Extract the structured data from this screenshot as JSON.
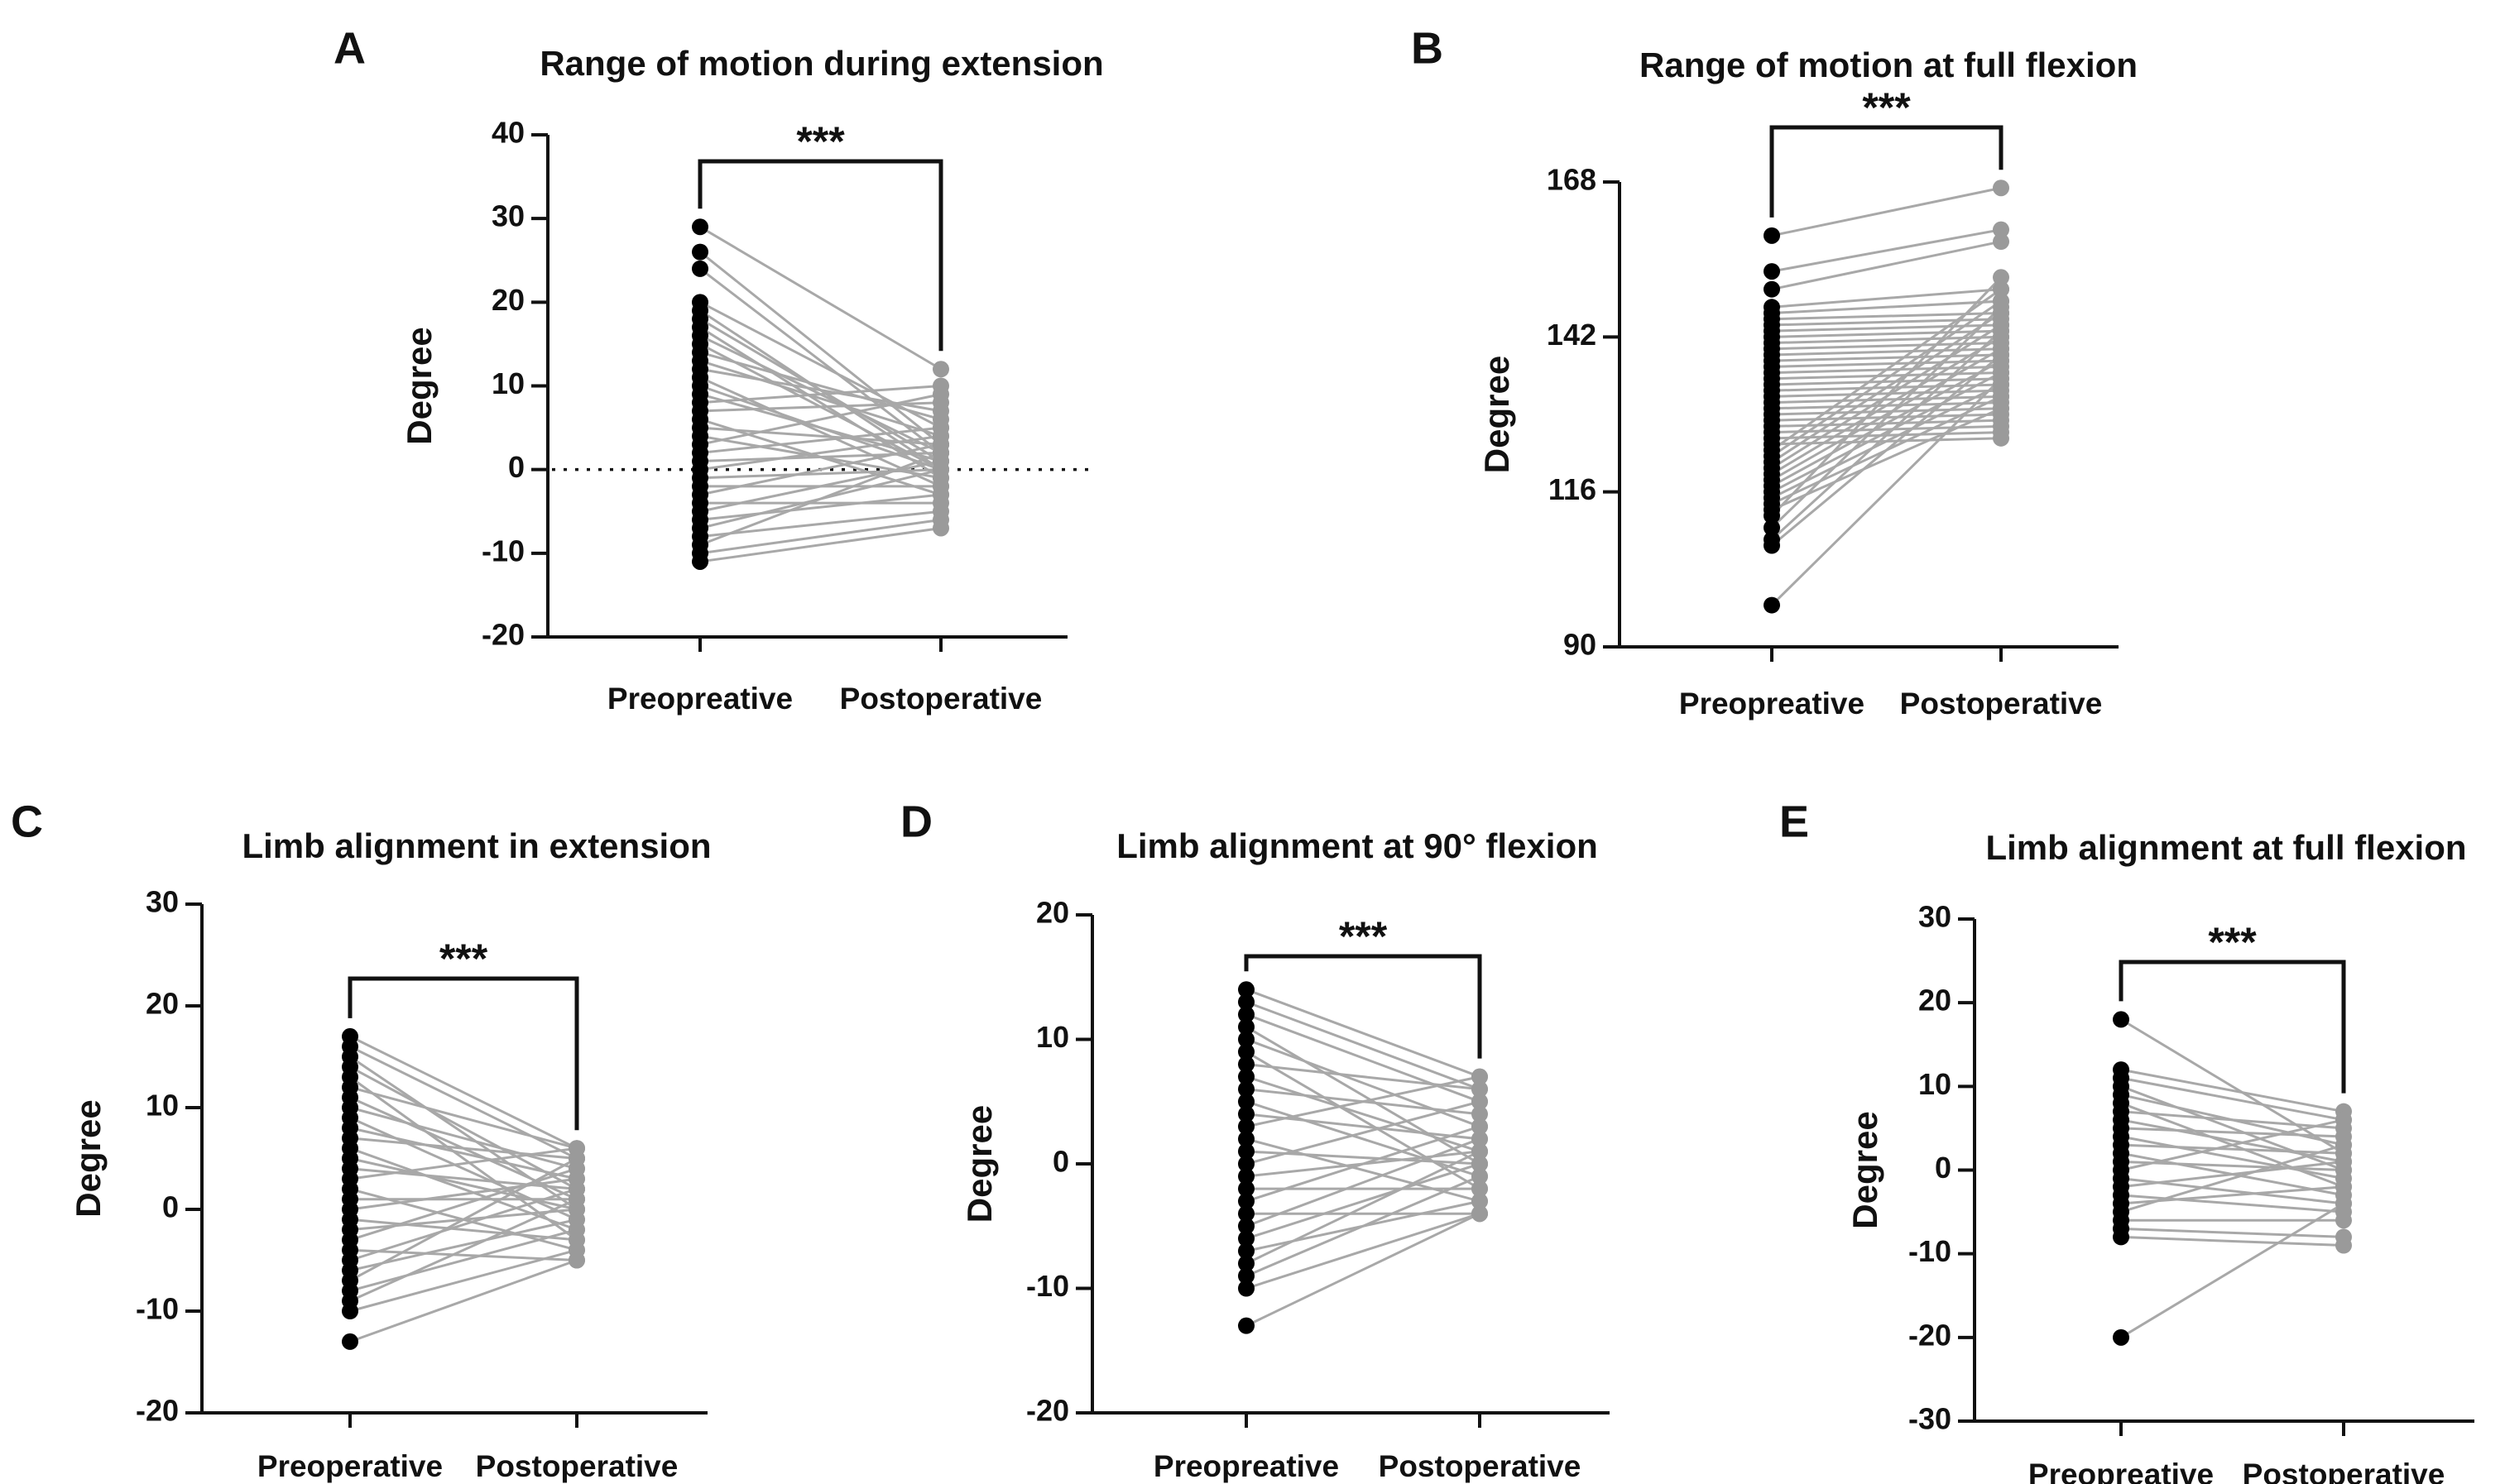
{
  "colors": {
    "pre_marker": "#000000",
    "post_marker": "#9a9a9a",
    "line": "#a8a8a8",
    "axis": "#111111"
  },
  "chart_data": [
    {
      "id": "A",
      "panel_letter": "A",
      "type": "scatter",
      "title": "Range of motion during extension",
      "ylabel": "Degree",
      "xlabel": "",
      "categories": [
        "Preopreative",
        "Postoperative"
      ],
      "ylim": [
        -20,
        40
      ],
      "yticks": [
        -20,
        -10,
        0,
        10,
        20,
        30,
        40
      ],
      "reference_line": 0,
      "significance": "***",
      "series": [
        {
          "name": "Preopreative",
          "values": [
            29,
            26,
            24,
            20,
            19,
            18,
            17,
            16,
            15,
            14,
            13,
            12,
            11,
            10,
            9,
            8,
            7,
            6,
            5,
            4,
            3,
            2,
            1,
            0,
            -1,
            -2,
            -3,
            -4,
            -5,
            -6,
            -7,
            -8,
            -9,
            -10,
            -11
          ]
        },
        {
          "name": "Postoperative",
          "values": [
            12,
            3,
            2,
            5,
            0,
            1,
            -1,
            2,
            0,
            6,
            4,
            7,
            -2,
            0,
            1,
            10,
            8,
            -3,
            3,
            -1,
            9,
            5,
            2,
            4,
            0,
            -2,
            3,
            -4,
            1,
            -3,
            0,
            -5,
            2,
            -6,
            -7
          ]
        }
      ]
    },
    {
      "id": "B",
      "panel_letter": "B",
      "type": "scatter",
      "title": "Range of motion at full flexion",
      "ylabel": "Degree",
      "xlabel": "",
      "categories": [
        "Preopreative",
        "Postoperative"
      ],
      "ylim": [
        90,
        168
      ],
      "yticks": [
        90,
        116,
        142,
        168
      ],
      "significance": "***",
      "series": [
        {
          "name": "Preopreative",
          "values": [
            159,
            153,
            150,
            147,
            146,
            145,
            144,
            143,
            142,
            141,
            140,
            139,
            138,
            137,
            136,
            135,
            134,
            133,
            132,
            131,
            130,
            129,
            128,
            127,
            126,
            125,
            124,
            123,
            122,
            121,
            120,
            119,
            118,
            117,
            116,
            115,
            114,
            113,
            112,
            110,
            108,
            107,
            97
          ]
        },
        {
          "name": "Postoperative",
          "values": [
            167,
            160,
            158,
            150,
            148,
            146,
            145,
            144,
            143,
            142,
            141,
            140,
            139,
            138,
            137,
            136,
            135,
            134,
            133,
            132,
            131,
            130,
            129,
            128,
            127,
            126,
            125,
            150,
            148,
            146,
            144,
            142,
            140,
            138,
            136,
            134,
            132,
            130,
            152,
            147,
            143,
            139,
            135
          ]
        }
      ]
    },
    {
      "id": "C",
      "panel_letter": "C",
      "type": "scatter",
      "title": "Limb alignment in extension",
      "ylabel": "Degree",
      "xlabel": "",
      "categories": [
        "Preoperative",
        "Postoperative"
      ],
      "ylim": [
        -20,
        30
      ],
      "yticks": [
        -20,
        -10,
        0,
        10,
        20,
        30
      ],
      "significance": "***",
      "series": [
        {
          "name": "Preoperative",
          "values": [
            17,
            16,
            15,
            14,
            13,
            12,
            11,
            10,
            9,
            8,
            7,
            6,
            5,
            4,
            3,
            2,
            1,
            0,
            -1,
            -2,
            -3,
            -4,
            -5,
            -6,
            -7,
            -8,
            -9,
            -10,
            -13
          ]
        },
        {
          "name": "Postoperative",
          "values": [
            6,
            5,
            0,
            2,
            -3,
            6,
            1,
            4,
            -1,
            3,
            5,
            -2,
            0,
            2,
            6,
            -4,
            1,
            3,
            -3,
            0,
            4,
            -5,
            2,
            -1,
            5,
            -2,
            1,
            -4,
            -5
          ]
        }
      ]
    },
    {
      "id": "D",
      "panel_letter": "D",
      "type": "scatter",
      "title": "Limb alignment at 90° flexion",
      "ylabel": "Degree",
      "xlabel": "",
      "categories": [
        "Preopreative",
        "Postoperative"
      ],
      "ylim": [
        -20,
        20
      ],
      "yticks": [
        -20,
        -10,
        0,
        10,
        20
      ],
      "significance": "***",
      "series": [
        {
          "name": "Preopreative",
          "values": [
            14,
            13,
            12,
            11,
            10,
            9,
            8,
            7,
            6,
            5,
            4,
            3,
            2,
            1,
            0,
            -1,
            -2,
            -3,
            -4,
            -5,
            -6,
            -7,
            -8,
            -9,
            -10,
            -13
          ]
        },
        {
          "name": "Postoperative",
          "values": [
            7,
            6,
            5,
            0,
            3,
            -2,
            6,
            1,
            4,
            -1,
            2,
            7,
            -3,
            0,
            5,
            1,
            -2,
            3,
            -4,
            2,
            0,
            -3,
            1,
            -1,
            -4,
            -4
          ]
        }
      ]
    },
    {
      "id": "E",
      "panel_letter": "E",
      "type": "scatter",
      "title": "Limb alignment at full flexion",
      "ylabel": "Degree",
      "xlabel": "",
      "categories": [
        "Preopreative",
        "Postoperative"
      ],
      "ylim": [
        -30,
        30
      ],
      "yticks": [
        -30,
        -20,
        -10,
        0,
        10,
        20,
        30
      ],
      "significance": "***",
      "series": [
        {
          "name": "Preopreative",
          "values": [
            18,
            12,
            11,
            10,
            9,
            8,
            7,
            6,
            5,
            4,
            3,
            2,
            1,
            0,
            -1,
            -2,
            -3,
            -4,
            -5,
            -6,
            -7,
            -8,
            -20
          ]
        },
        {
          "name": "Postoperative",
          "values": [
            2,
            7,
            6,
            0,
            3,
            -2,
            5,
            1,
            4,
            -1,
            2,
            -3,
            0,
            6,
            -4,
            1,
            -5,
            -2,
            3,
            -6,
            -8,
            -9,
            -4
          ]
        }
      ]
    }
  ]
}
